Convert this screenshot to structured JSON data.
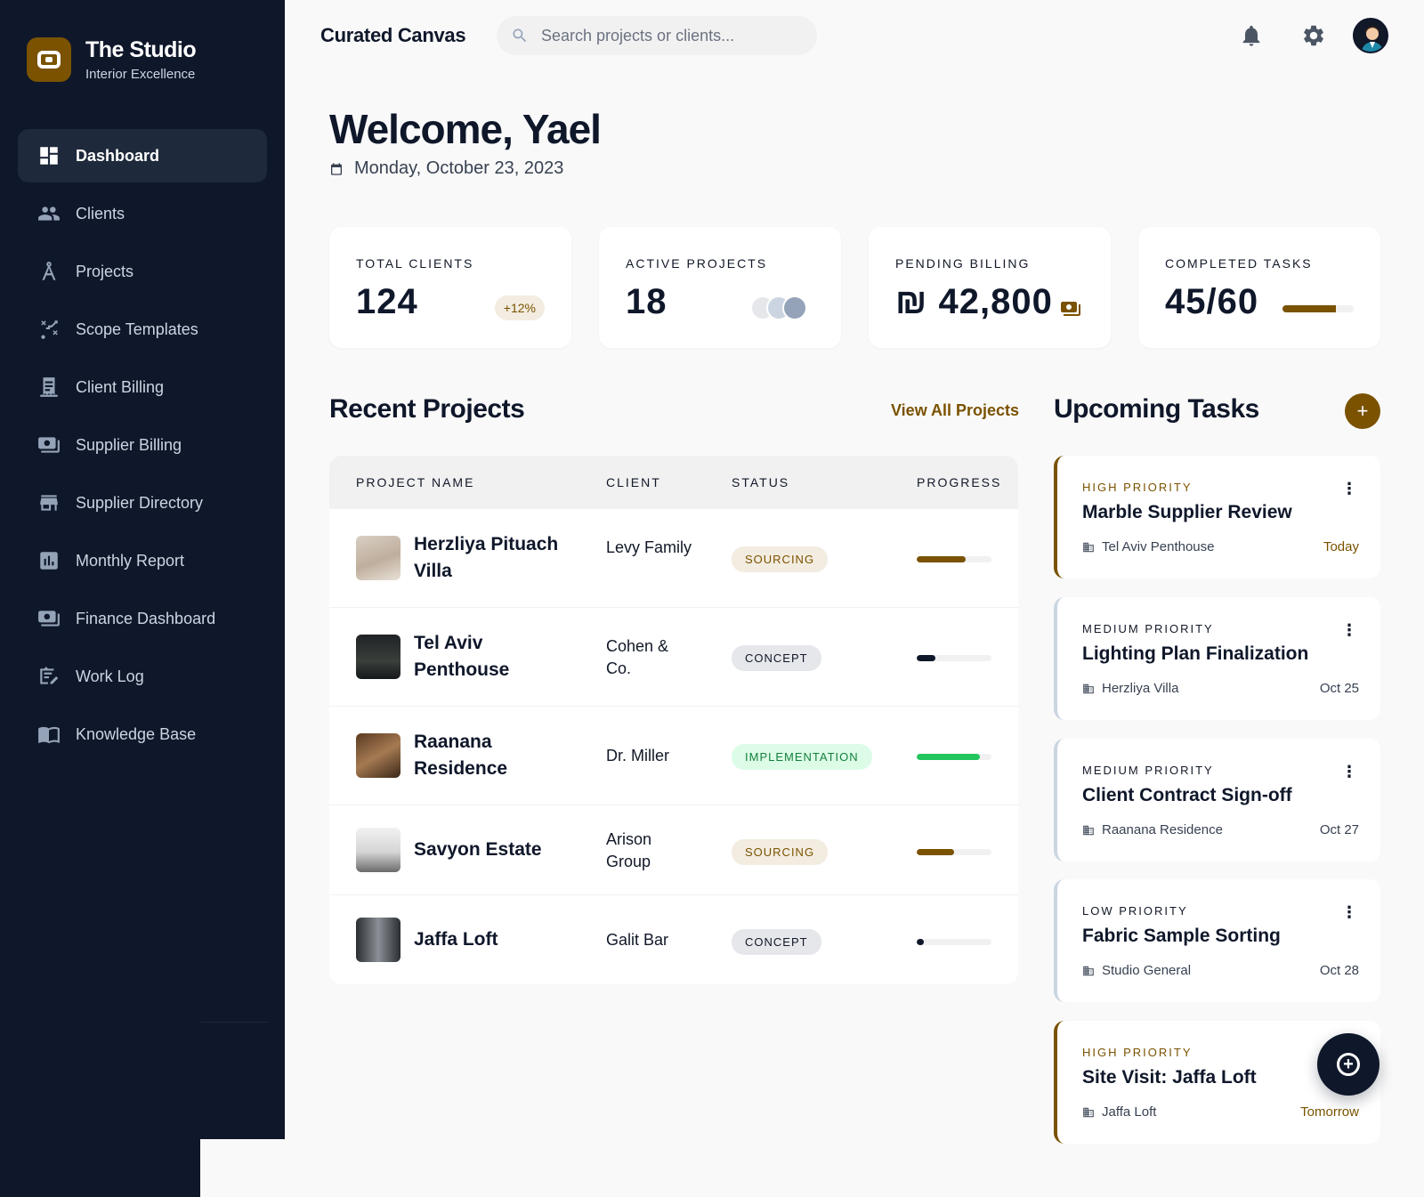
{
  "brand": {
    "title": "The Studio",
    "subtitle": "Interior Excellence"
  },
  "nav": [
    {
      "label": "Dashboard",
      "icon": "dashboard-icon",
      "active": true
    },
    {
      "label": "Clients",
      "icon": "users-icon"
    },
    {
      "label": "Projects",
      "icon": "compass-icon"
    },
    {
      "label": "Scope Templates",
      "icon": "route-icon"
    },
    {
      "label": "Client Billing",
      "icon": "receipt-icon"
    },
    {
      "label": "Supplier Billing",
      "icon": "payments-icon"
    },
    {
      "label": "Supplier Directory",
      "icon": "store-icon"
    },
    {
      "label": "Monthly Report",
      "icon": "chart-icon"
    },
    {
      "label": "Finance Dashboard",
      "icon": "payments-icon"
    },
    {
      "label": "Work Log",
      "icon": "worklog-icon"
    },
    {
      "label": "Knowledge Base",
      "icon": "book-icon"
    }
  ],
  "header": {
    "app_title": "Curated Canvas",
    "search_placeholder": "Search projects or clients..."
  },
  "welcome": {
    "title": "Welcome, Yael",
    "date": "Monday, October 23, 2023"
  },
  "stats": [
    {
      "label": "TOTAL CLIENTS",
      "value": "124",
      "badge": "+12%"
    },
    {
      "label": "ACTIVE PROJECTS",
      "value": "18"
    },
    {
      "label": "PENDING BILLING",
      "value": "₪ 42,800"
    },
    {
      "label": "COMPLETED TASKS",
      "value": "45/60",
      "progress": 0.75
    }
  ],
  "recent": {
    "title": "Recent Projects",
    "view_all": "View All Projects",
    "columns": [
      "PROJECT NAME",
      "CLIENT",
      "STATUS",
      "PROGRESS"
    ],
    "rows": [
      {
        "name": "Herzliya Pituach Villa",
        "client": "Levy Family",
        "status": "SOURCING",
        "progress": 0.65
      },
      {
        "name": "Tel Aviv Penthouse",
        "client": "Cohen & Co.",
        "status": "CONCEPT",
        "progress": 0.25
      },
      {
        "name": "Raanana Residence",
        "client": "Dr. Miller",
        "status": "IMPLEMENTATION",
        "progress": 0.85
      },
      {
        "name": "Savyon Estate",
        "client": "Arison Group",
        "status": "SOURCING",
        "progress": 0.5
      },
      {
        "name": "Jaffa Loft",
        "client": "Galit Bar",
        "status": "CONCEPT",
        "progress": 0.1
      }
    ]
  },
  "tasks": {
    "title": "Upcoming Tasks",
    "add_label": "+",
    "items": [
      {
        "priority": "HIGH PRIORITY",
        "title": "Marble Supplier Review",
        "project": "Tel Aviv Penthouse",
        "due": "Today"
      },
      {
        "priority": "MEDIUM PRIORITY",
        "title": "Lighting Plan Finalization",
        "project": "Herzliya Villa",
        "due": "Oct 25"
      },
      {
        "priority": "MEDIUM PRIORITY",
        "title": "Client Contract Sign-off",
        "project": "Raanana Residence",
        "due": "Oct 27"
      },
      {
        "priority": "LOW PRIORITY",
        "title": "Fabric Sample Sorting",
        "project": "Studio General",
        "due": "Oct 28"
      },
      {
        "priority": "HIGH PRIORITY",
        "title": "Site Visit: Jaffa Loft",
        "project": "Jaffa Loft",
        "due": "Tomorrow"
      }
    ]
  },
  "colors": {
    "accent": "#7a5200",
    "sidebar": "#0f172a",
    "success": "#22c55e"
  }
}
